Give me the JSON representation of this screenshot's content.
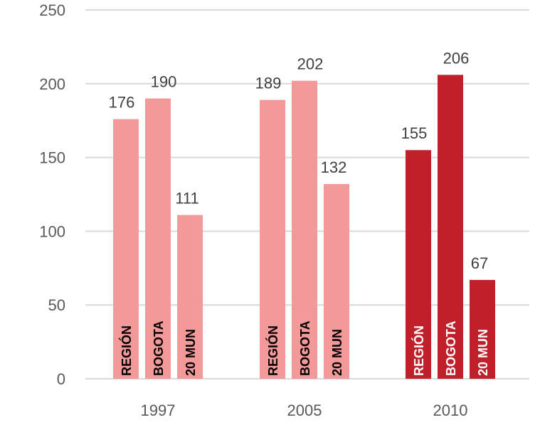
{
  "chart_data": {
    "type": "bar",
    "title_partial": "(…es, …)",
    "categories": [
      "1997",
      "2005",
      "2010"
    ],
    "series": [
      {
        "name": "REGIÓN",
        "values": [
          176,
          189,
          155
        ]
      },
      {
        "name": "BOGOTA",
        "values": [
          190,
          202,
          206
        ]
      },
      {
        "name": "20 MUN",
        "values": [
          111,
          132,
          67
        ]
      }
    ],
    "ylim": [
      0,
      250
    ],
    "yticks": [
      0,
      50,
      100,
      150,
      200,
      250
    ],
    "grid": true,
    "colors": {
      "light_bar": "#F4999A",
      "dark_bar": "#C0202A",
      "grid": "#d9d9d9",
      "in_bar_label_light": "#000000",
      "in_bar_label_dark": "#ffffff"
    },
    "highlight_category": "2010"
  }
}
